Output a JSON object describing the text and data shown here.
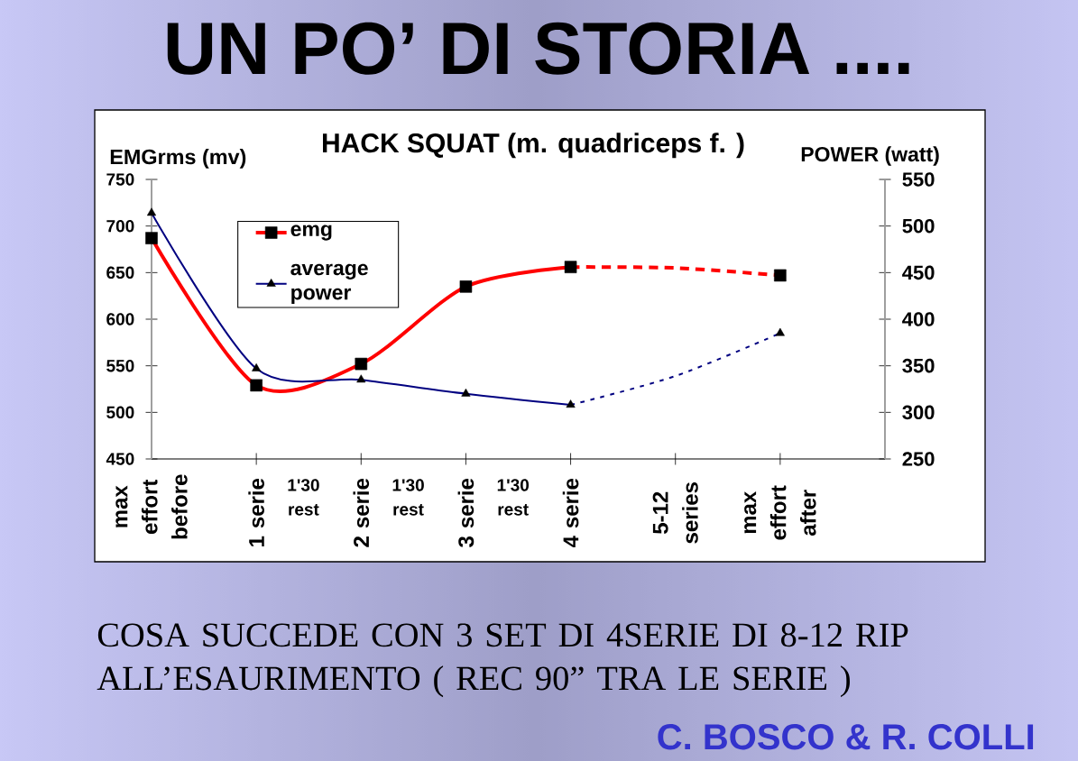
{
  "chart_data": {
    "type": "line",
    "title": "UN PO’ DI STORIA ....",
    "subtitle": "HACK SQUAT (m. quadriceps f. )",
    "ylabel": "EMGrms (mv)",
    "y2label": "POWER (watt)",
    "categories": [
      "max effort before",
      "1 serie",
      "2 serie",
      "3 serie",
      "4 serie",
      "5-12 series",
      "max effort after"
    ],
    "series": [
      {
        "name": "emg",
        "color": "#ff0000",
        "marker": "square",
        "values": [
          687,
          529,
          552,
          635,
          656,
          null,
          null
        ]
      },
      {
        "name": "average power",
        "color": "#000080",
        "marker": "triangle",
        "axis": "y2",
        "values": [
          514,
          347,
          335,
          320,
          308,
          null,
          null
        ]
      },
      {
        "color": "#ff0000",
        "marker": "none",
        "line_style": "dashed",
        "values": [
          null,
          null,
          null,
          null,
          656,
          655,
          647
        ]
      },
      {
        "color": "#000080",
        "marker": "none",
        "line_style": "dotted",
        "axis": "y2",
        "values": [
          null,
          null,
          null,
          null,
          308,
          339,
          385
        ]
      },
      {
        "type": "scatter",
        "color": "#000000",
        "marker": "square",
        "values": [
          null,
          null,
          null,
          null,
          null,
          null,
          647
        ]
      },
      {
        "type": "scatter",
        "color": "#000000",
        "marker": "triangle",
        "axis": "y2",
        "values": [
          null,
          null,
          null,
          null,
          null,
          null,
          385
        ]
      }
    ],
    "ylim": [
      450,
      750
    ],
    "yticks": [
      450,
      500,
      550,
      600,
      650,
      700,
      750
    ],
    "y2lim": [
      250,
      550
    ],
    "y2ticks": [
      250,
      300,
      350,
      400,
      450,
      500,
      550
    ],
    "legend": "top left",
    "annotations": [
      "1'30 rest",
      "1'30 rest",
      "1'30 rest",
      "COSA SUCCEDE CON 3 SET DI 4SERIE DI 8-12 RIP ALL’ESAURIMENTO ( REC 90” TRA LE SERIE )",
      "C. BOSCO & R. COLLI"
    ]
  }
}
